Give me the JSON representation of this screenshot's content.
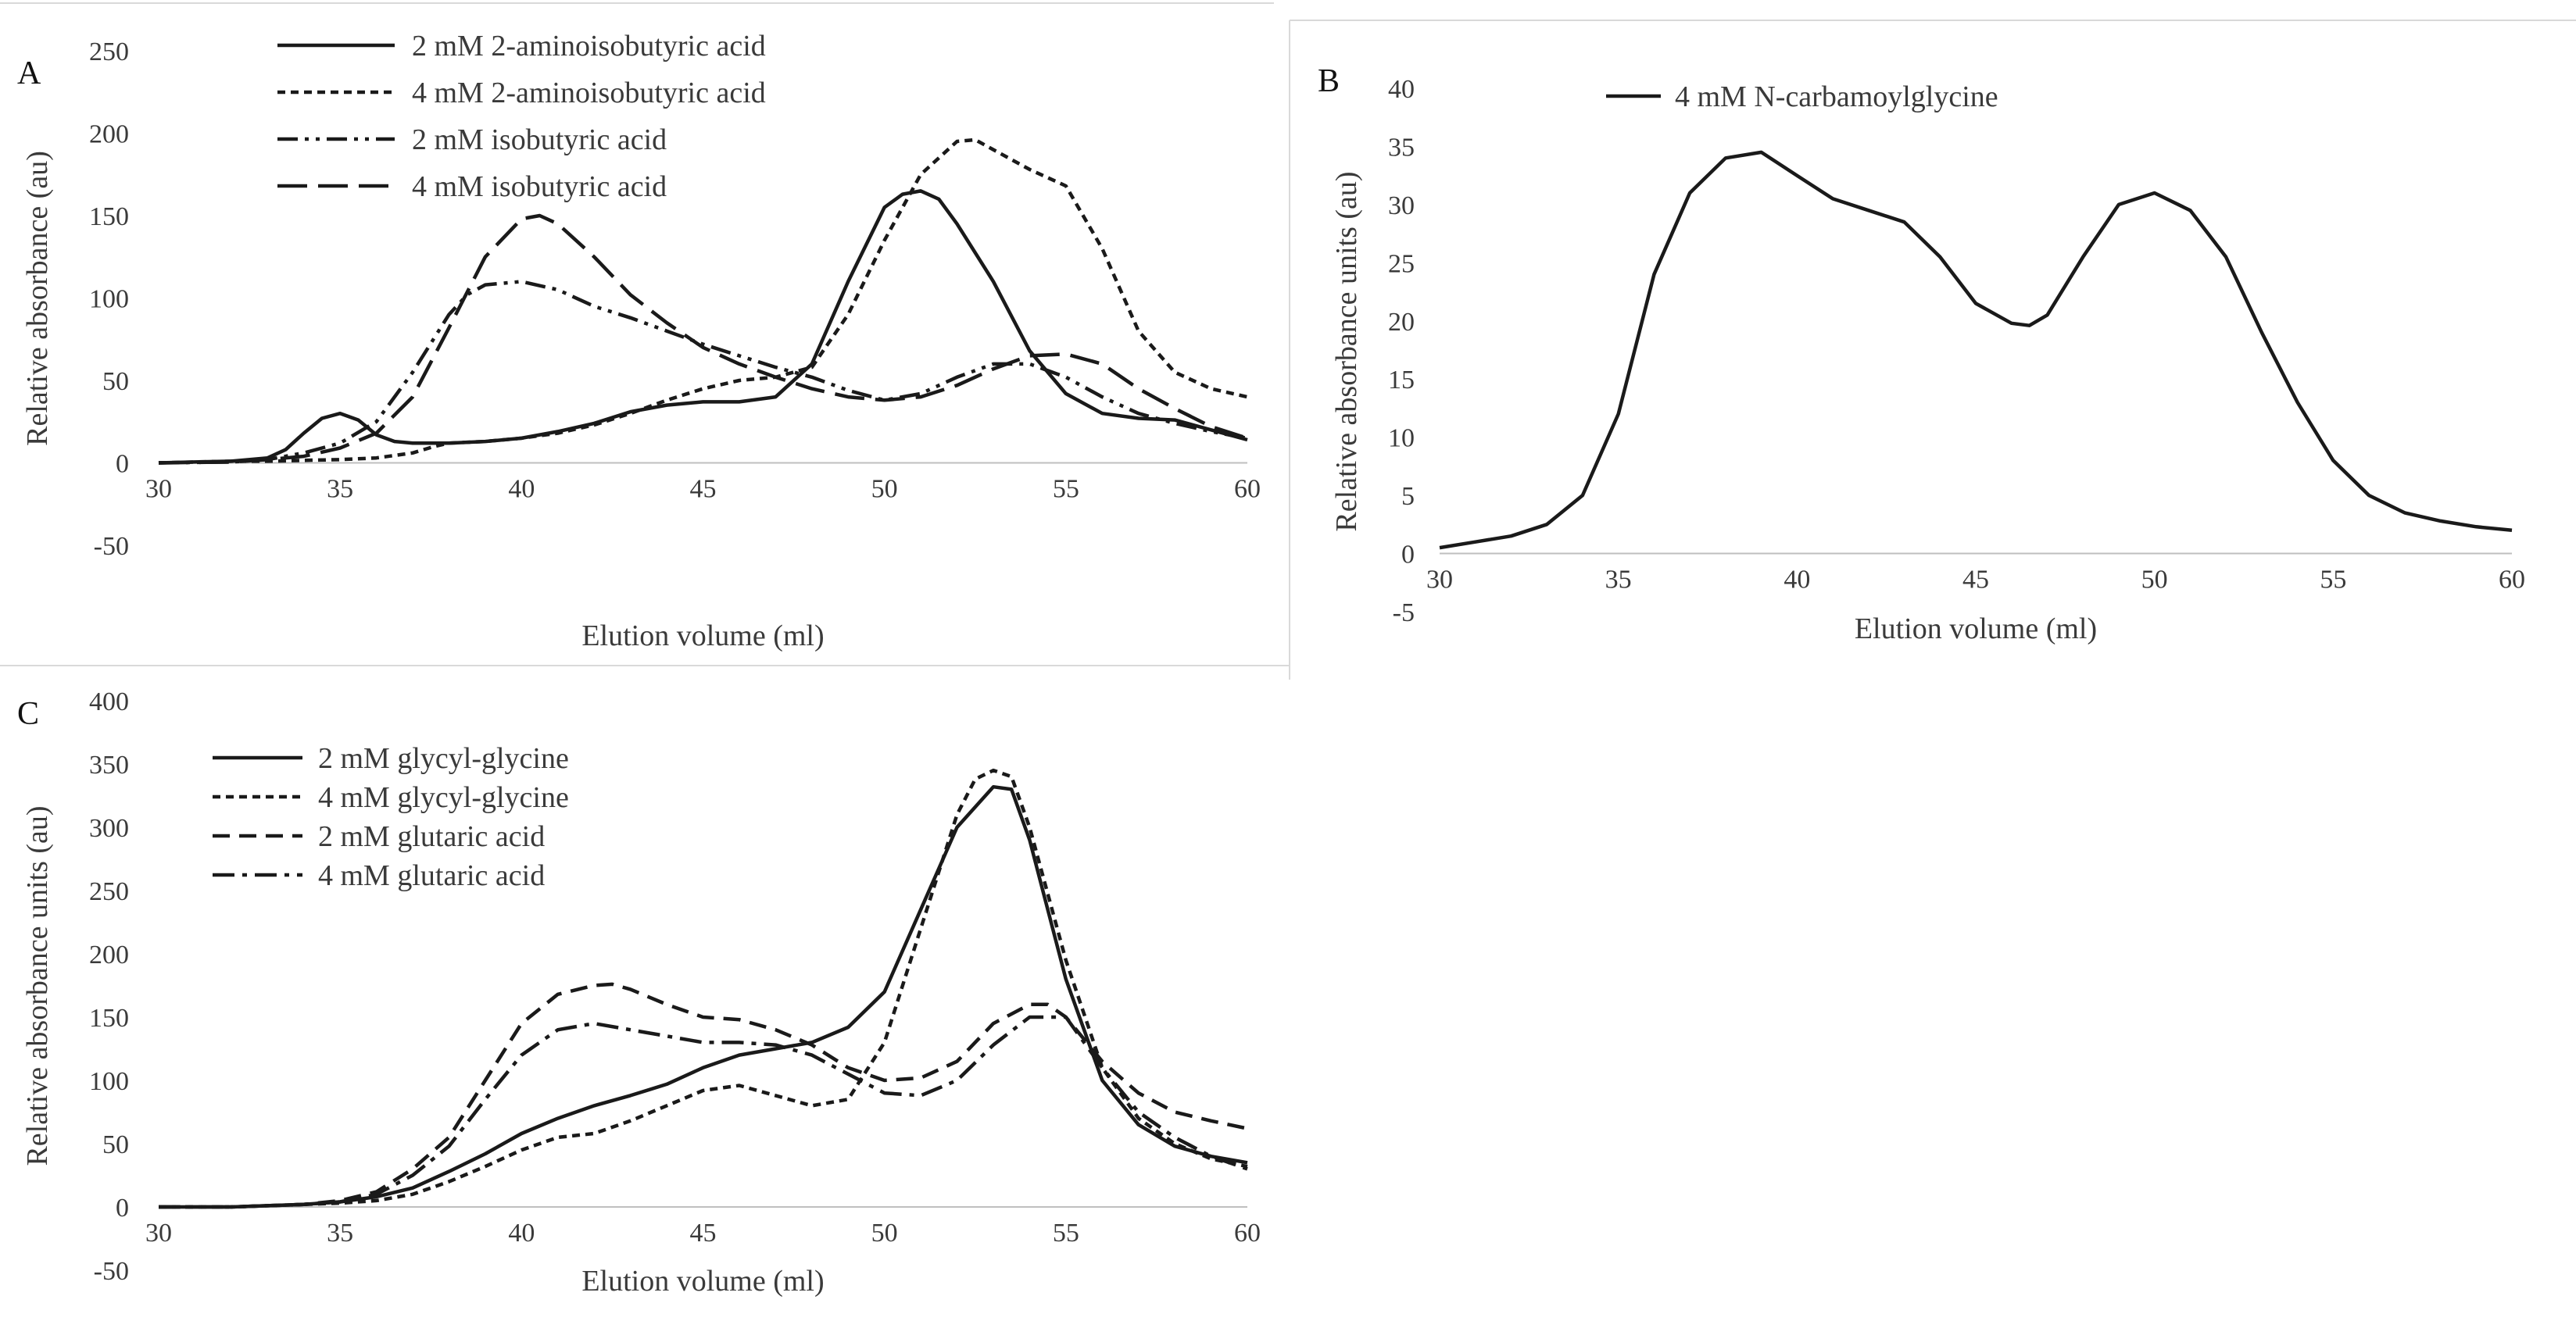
{
  "chart_data": [
    {
      "panel": "A",
      "type": "line",
      "xlabel": "Elution volume (ml)",
      "ylabel": "Relative absorbance (au)",
      "xlim": [
        30,
        60
      ],
      "ylim": [
        -50,
        250
      ],
      "xticks": [
        30,
        35,
        40,
        45,
        50,
        55,
        60
      ],
      "yticks": [
        -50,
        0,
        50,
        100,
        150,
        200,
        250
      ],
      "legend_position": "top-center",
      "series": [
        {
          "name": "2 mM 2-aminoisobutyric acid",
          "dash": "solid",
          "x": [
            30,
            31,
            32,
            33,
            33.5,
            34,
            34.5,
            35,
            35.5,
            36,
            36.5,
            37,
            38,
            39,
            40,
            41,
            42,
            43,
            44,
            45,
            46,
            47,
            48,
            49,
            50,
            50.5,
            51,
            51.5,
            52,
            53,
            54,
            55,
            56,
            57,
            58,
            59,
            60
          ],
          "y": [
            0,
            0.5,
            1,
            3,
            8,
            18,
            27,
            30,
            26,
            17,
            13,
            12,
            12,
            13,
            15,
            19,
            24,
            31,
            35,
            37,
            37,
            40,
            60,
            110,
            155,
            163,
            165,
            160,
            145,
            110,
            68,
            42,
            30,
            27,
            26,
            20,
            14
          ]
        },
        {
          "name": "4 mM 2-aminoisobutyric acid",
          "dash": "dot",
          "x": [
            30,
            31,
            32,
            33,
            34,
            35,
            36,
            37,
            37.3,
            37.6,
            38,
            39,
            40,
            41,
            42,
            43,
            44,
            45,
            46,
            47,
            48,
            49,
            50,
            51,
            52,
            52.5,
            53,
            54,
            55,
            56,
            57,
            58,
            59,
            60
          ],
          "y": [
            0,
            0.5,
            1,
            1,
            1.5,
            2,
            3,
            6,
            8,
            10,
            12,
            13,
            15,
            18,
            23,
            30,
            38,
            45,
            50,
            52,
            58,
            90,
            135,
            175,
            195,
            196,
            190,
            178,
            168,
            130,
            80,
            55,
            45,
            40
          ]
        },
        {
          "name": "2 mM isobutyric acid",
          "dash": "dashdotdot",
          "x": [
            30,
            32,
            33,
            34,
            35,
            36,
            37,
            38,
            38.5,
            39,
            40,
            41,
            42,
            43,
            44,
            45,
            46,
            47,
            48,
            49,
            50,
            51,
            52,
            53,
            54,
            55,
            56,
            57,
            58,
            59,
            60
          ],
          "y": [
            0,
            0.5,
            2,
            6,
            12,
            25,
            55,
            90,
            102,
            108,
            110,
            105,
            95,
            88,
            80,
            72,
            65,
            58,
            52,
            44,
            38,
            42,
            52,
            60,
            60,
            52,
            40,
            30,
            24,
            19,
            15
          ]
        },
        {
          "name": "4 mM isobutyric acid",
          "dash": "longdash",
          "x": [
            30,
            32,
            33,
            34,
            35,
            36,
            37,
            38,
            39,
            40,
            40.5,
            41,
            42,
            43,
            44,
            45,
            46,
            47,
            48,
            49,
            50,
            51,
            52,
            53,
            54,
            55,
            56,
            57,
            58,
            59,
            60
          ],
          "y": [
            0,
            0.5,
            2,
            4,
            9,
            18,
            40,
            82,
            125,
            148,
            150,
            145,
            125,
            102,
            85,
            70,
            60,
            52,
            45,
            40,
            38,
            40,
            47,
            57,
            65,
            66,
            60,
            45,
            33,
            22,
            15
          ]
        }
      ]
    },
    {
      "panel": "B",
      "type": "line",
      "xlabel": "Elution volume (ml)",
      "ylabel": "Relative absorbance units (au)",
      "xlim": [
        30,
        60
      ],
      "ylim": [
        -5,
        40
      ],
      "xticks": [
        30,
        35,
        40,
        45,
        50,
        55,
        60
      ],
      "yticks": [
        -5,
        0,
        5,
        10,
        15,
        20,
        25,
        30,
        35,
        40
      ],
      "legend_position": "top-left",
      "series": [
        {
          "name": "4 mM N-carbamoylglycine",
          "dash": "solid",
          "x": [
            30,
            31,
            32,
            33,
            34,
            35,
            36,
            37,
            38,
            39,
            40,
            41,
            42,
            43,
            44,
            45,
            46,
            46.5,
            47,
            48,
            49,
            50,
            51,
            52,
            53,
            54,
            55,
            56,
            57,
            58,
            59,
            60
          ],
          "y": [
            0.5,
            1,
            1.5,
            2.5,
            5,
            12,
            24,
            31,
            34,
            34.5,
            32.5,
            30.5,
            29.5,
            28.5,
            25.5,
            21.5,
            19.8,
            19.6,
            20.5,
            25.5,
            30,
            31,
            29.5,
            25.5,
            19,
            13,
            8,
            5,
            3.5,
            2.8,
            2.3,
            2
          ]
        }
      ]
    },
    {
      "panel": "C",
      "type": "line",
      "xlabel": "Elution volume (ml)",
      "ylabel": "Relative absorbance units (au)",
      "xlim": [
        30,
        60
      ],
      "ylim": [
        -50,
        400
      ],
      "xticks": [
        30,
        35,
        40,
        45,
        50,
        55,
        60
      ],
      "yticks": [
        -50,
        0,
        50,
        100,
        150,
        200,
        250,
        300,
        350,
        400
      ],
      "legend_position": "top-left",
      "series": [
        {
          "name": "2 mM glycyl-glycine",
          "dash": "solid",
          "x": [
            30,
            32,
            34,
            35,
            36,
            37,
            38,
            39,
            40,
            41,
            42,
            43,
            44,
            45,
            46,
            47,
            48,
            49,
            50,
            51,
            52,
            53,
            53.5,
            54,
            55,
            56,
            57,
            58,
            59,
            60
          ],
          "y": [
            0,
            0,
            2,
            4,
            8,
            15,
            28,
            42,
            58,
            70,
            80,
            88,
            97,
            110,
            120,
            125,
            130,
            142,
            170,
            235,
            300,
            332,
            330,
            290,
            180,
            100,
            65,
            48,
            40,
            35
          ]
        },
        {
          "name": "4 mM glycyl-glycine",
          "dash": "dot",
          "x": [
            30,
            32,
            34,
            35,
            36,
            37,
            38,
            39,
            40,
            41,
            42,
            43,
            44,
            45,
            46,
            47,
            48,
            49,
            50,
            51,
            52,
            52.5,
            53,
            53.5,
            54,
            55,
            56,
            57,
            58,
            59,
            60
          ],
          "y": [
            0,
            0,
            2,
            3,
            5,
            10,
            20,
            32,
            45,
            55,
            58,
            68,
            80,
            92,
            96,
            88,
            80,
            85,
            130,
            220,
            310,
            338,
            345,
            340,
            300,
            195,
            110,
            70,
            50,
            38,
            32
          ]
        },
        {
          "name": "2 mM glutaric acid",
          "dash": "dash",
          "x": [
            30,
            32,
            34,
            35,
            36,
            37,
            38,
            39,
            40,
            41,
            42,
            42.5,
            43,
            44,
            45,
            46,
            47,
            48,
            49,
            50,
            51,
            52,
            53,
            54,
            54.5,
            55,
            56,
            57,
            58,
            59,
            60
          ],
          "y": [
            0,
            0,
            2,
            5,
            12,
            30,
            55,
            100,
            145,
            168,
            175,
            176,
            172,
            160,
            150,
            148,
            140,
            128,
            110,
            100,
            102,
            115,
            145,
            160,
            160,
            150,
            115,
            90,
            75,
            68,
            62
          ]
        },
        {
          "name": "4 mM glutaric acid",
          "dash": "dashdot",
          "x": [
            30,
            32,
            34,
            35,
            36,
            37,
            38,
            39,
            40,
            41,
            42,
            43,
            44,
            45,
            46,
            47,
            48,
            49,
            50,
            51,
            52,
            53,
            54,
            55,
            56,
            57,
            58,
            59,
            60
          ],
          "y": [
            0,
            0,
            2,
            4,
            10,
            25,
            48,
            85,
            120,
            140,
            145,
            140,
            135,
            130,
            130,
            128,
            120,
            105,
            90,
            88,
            100,
            128,
            150,
            150,
            110,
            75,
            55,
            40,
            30
          ]
        }
      ]
    }
  ]
}
